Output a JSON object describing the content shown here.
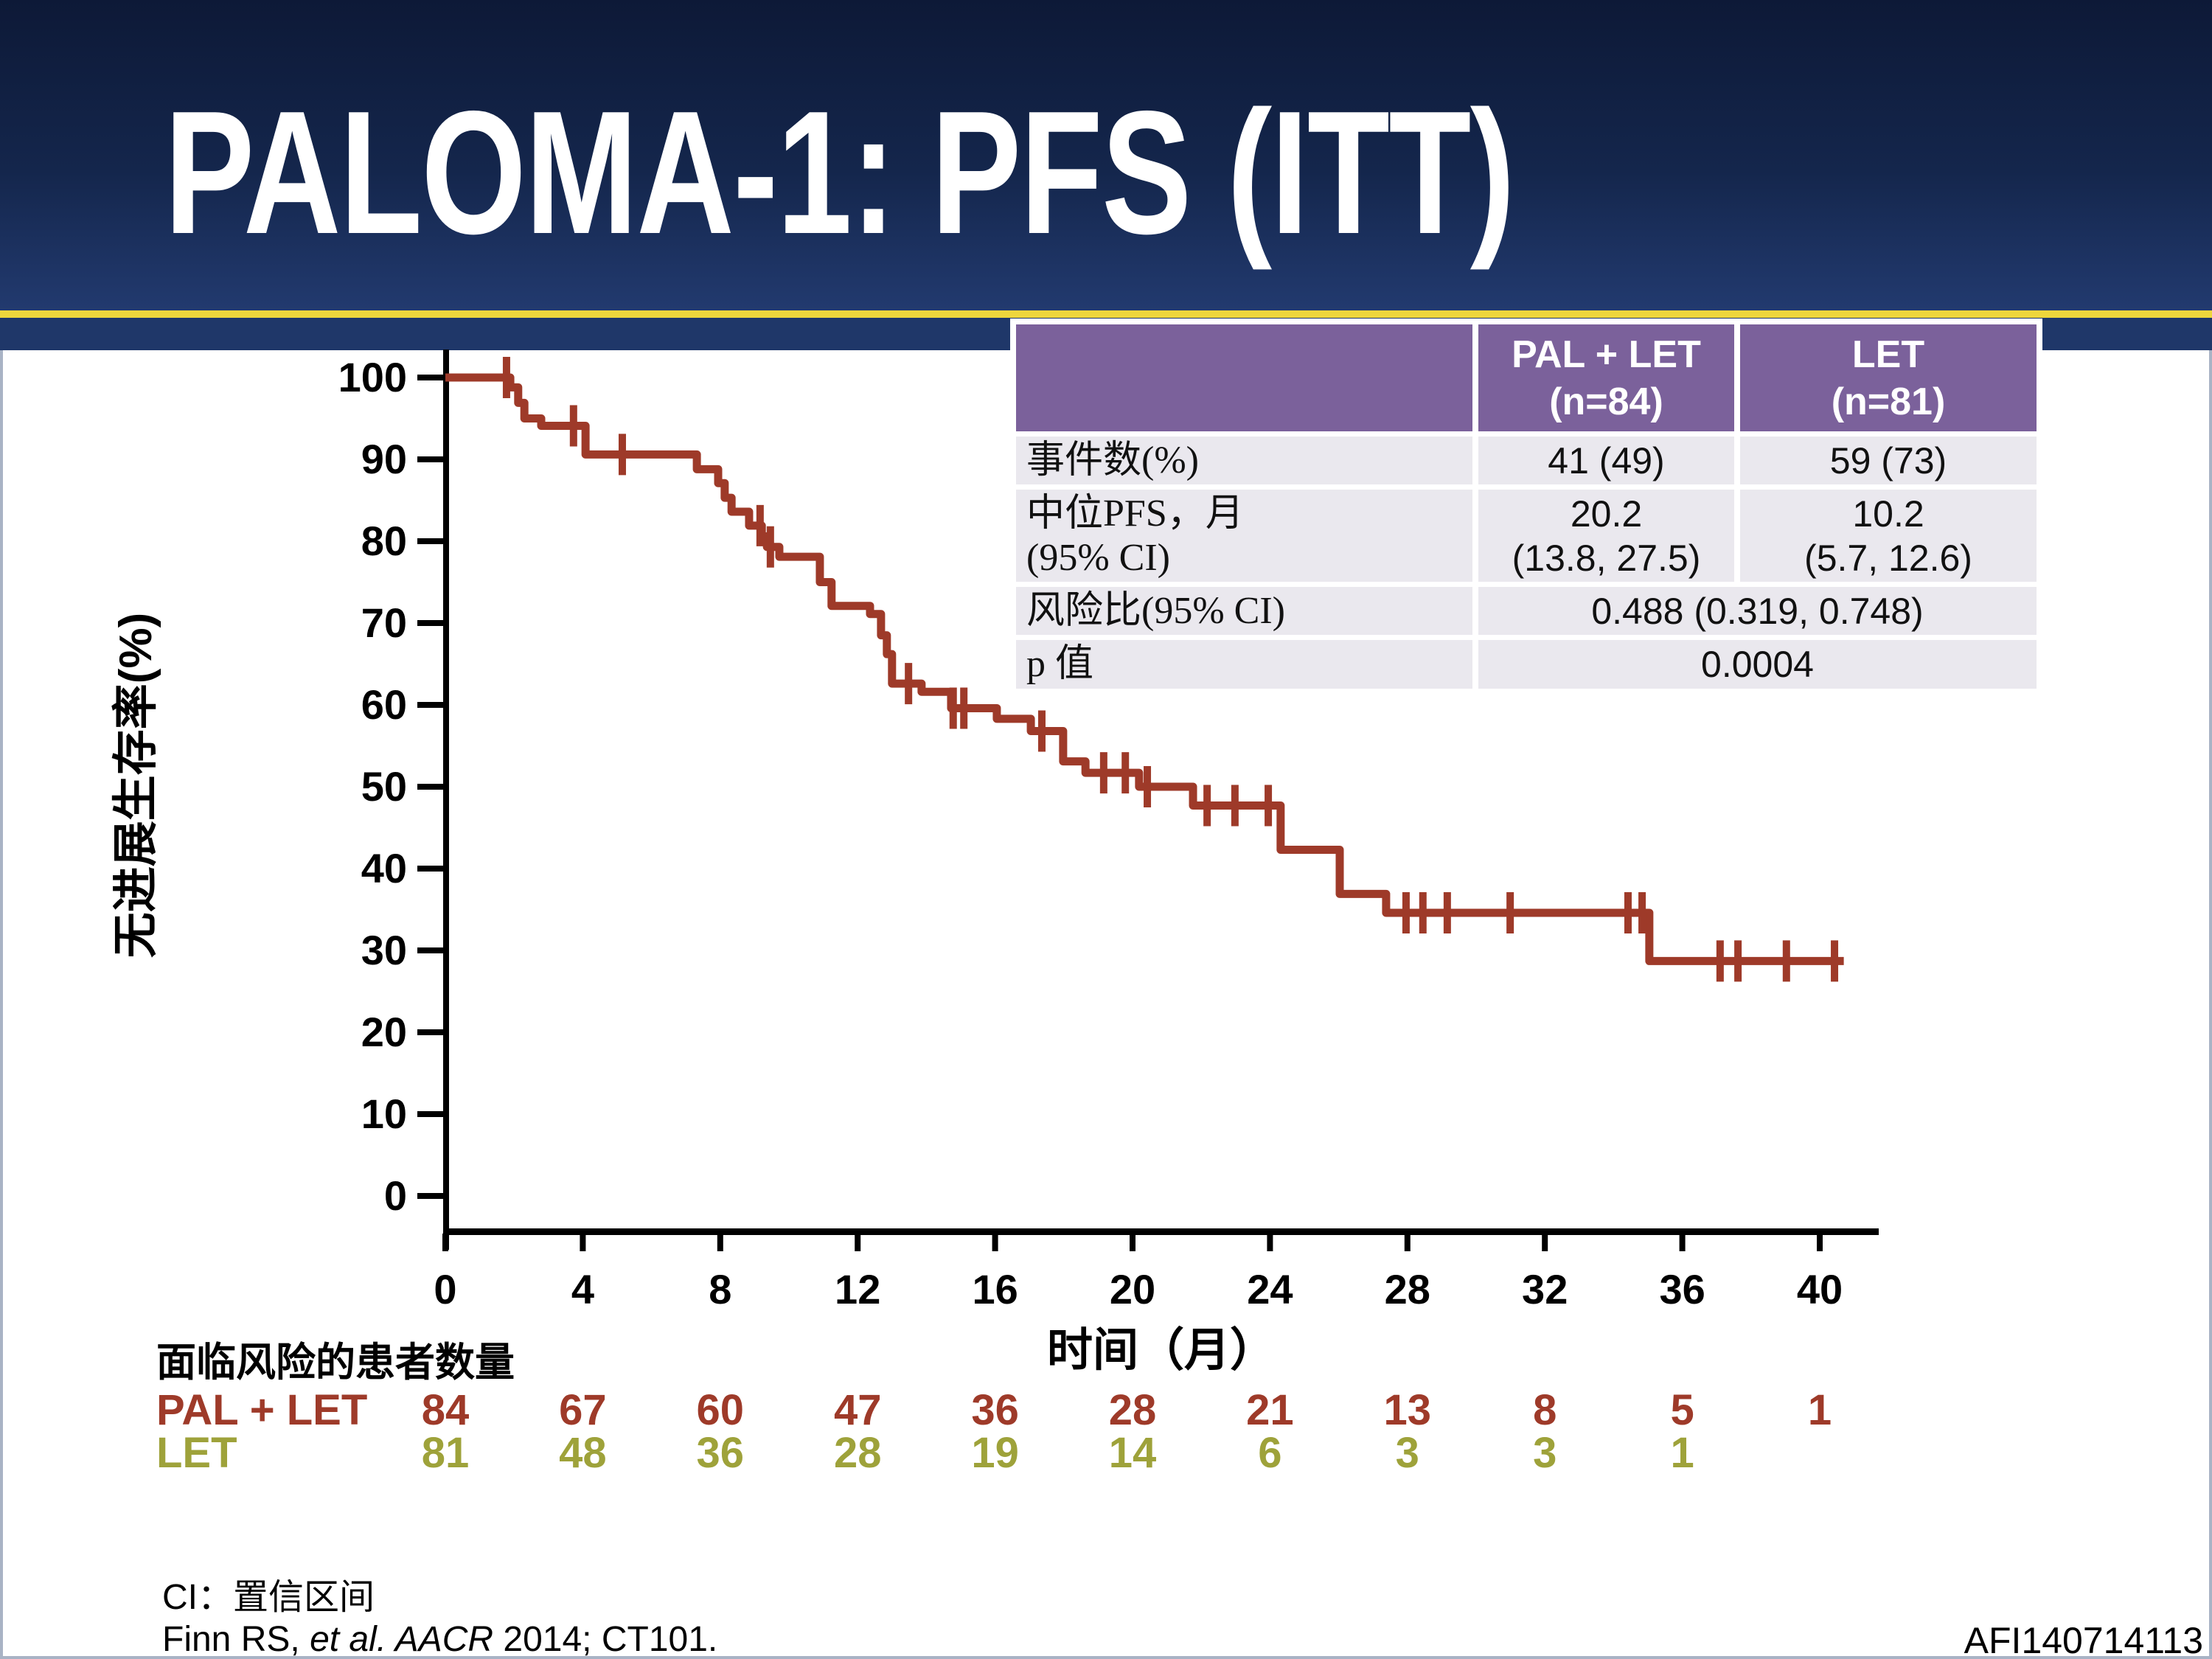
{
  "slide": {
    "title": "PALOMA-1: PFS (ITT)",
    "footnote_line1": "CI：置信区间",
    "footnote_line2": {
      "p1": "Finn RS, ",
      "i1": "et al. AACR",
      "p2": " 2014; CT101."
    },
    "watermark": "AFI140714113",
    "colors": {
      "header_navy_top": "#0d1937",
      "header_navy_bottom": "#223a6f",
      "gold_rule": "#EED63C",
      "table_purple": "#7B619B",
      "table_row_gray": "#EAE8EE",
      "curve_red": "#9E3A29",
      "let_olive": "#9EA23A"
    }
  },
  "summary_table": {
    "columns": [
      {
        "label": "PAL + LET",
        "sub": "(n=84)"
      },
      {
        "label": "LET",
        "sub": "(n=81)"
      }
    ],
    "rows": [
      {
        "label": "事件数(%)",
        "values": [
          "41 (49)",
          "59 (73)"
        ]
      },
      {
        "label_line1": "中位PFS，月",
        "label_line2": "(95% CI)",
        "values": [
          [
            "20.2",
            "(13.8, 27.5)"
          ],
          [
            "10.2",
            "(5.7, 12.6)"
          ]
        ]
      },
      {
        "label": "风险比(95% CI)",
        "merged_value": "0.488 (0.319, 0.748)"
      },
      {
        "label": "p 值",
        "merged_value": "0.0004"
      }
    ]
  },
  "chart_data": {
    "type": "line",
    "subtype": "kaplan-meier-step",
    "xlabel": "时间（月）",
    "ylabel": "无进展生存率(%)",
    "xlim": [
      0,
      42
    ],
    "ylim": [
      0,
      100
    ],
    "xticks": [
      0,
      4,
      8,
      12,
      16,
      20,
      24,
      28,
      32,
      36,
      40
    ],
    "yticks": [
      0,
      10,
      20,
      30,
      40,
      50,
      60,
      70,
      80,
      90,
      100
    ],
    "grid": false,
    "series": [
      {
        "name": "PAL + LET",
        "color": "#9E3A29",
        "end_time": 40.7,
        "steps": [
          [
            0,
            100
          ],
          [
            1.89,
            98.8
          ],
          [
            2.12,
            96.9
          ],
          [
            2.3,
            95
          ],
          [
            2.79,
            94.1
          ],
          [
            4.08,
            90.6
          ],
          [
            7.32,
            88.8
          ],
          [
            7.94,
            87.1
          ],
          [
            8.13,
            85.3
          ],
          [
            8.33,
            83.6
          ],
          [
            8.84,
            81.9
          ],
          [
            9.21,
            80.6
          ],
          [
            9.36,
            79.3
          ],
          [
            9.72,
            78.1
          ],
          [
            10.9,
            75
          ],
          [
            11.24,
            72.1
          ],
          [
            12.36,
            71.1
          ],
          [
            12.68,
            68.5
          ],
          [
            12.85,
            66.2
          ],
          [
            13,
            62.6
          ],
          [
            13.86,
            61.6
          ],
          [
            14.72,
            59.6
          ],
          [
            16.05,
            58.3
          ],
          [
            17.04,
            56.8
          ],
          [
            17.98,
            53.1
          ],
          [
            18.63,
            51.7
          ],
          [
            20.19,
            50
          ],
          [
            21.76,
            47.7
          ],
          [
            24.31,
            42.3
          ],
          [
            26.03,
            36.9
          ],
          [
            27.38,
            34.6
          ],
          [
            35.04,
            28.7
          ]
        ],
        "censors": [
          [
            1.78,
            100
          ],
          [
            3.73,
            94.1
          ],
          [
            5.15,
            90.6
          ],
          [
            9.16,
            81.9
          ],
          [
            9.46,
            79.3
          ],
          [
            13.48,
            62.6
          ],
          [
            14.78,
            59.6
          ],
          [
            15.09,
            59.6
          ],
          [
            17.36,
            56.8
          ],
          [
            19.16,
            51.7
          ],
          [
            19.79,
            51.7
          ],
          [
            20.43,
            50
          ],
          [
            22.17,
            47.7
          ],
          [
            22.98,
            47.7
          ],
          [
            23.95,
            47.7
          ],
          [
            27.96,
            34.6
          ],
          [
            28.45,
            34.6
          ],
          [
            29.16,
            34.6
          ],
          [
            30.99,
            34.6
          ],
          [
            34.42,
            34.6
          ],
          [
            34.83,
            34.6
          ],
          [
            37.1,
            28.7
          ],
          [
            37.62,
            28.7
          ],
          [
            39.03,
            28.7
          ],
          [
            40.43,
            28.7
          ]
        ]
      }
    ],
    "at_risk": {
      "header": "面临风险的患者数量",
      "times": [
        0,
        4,
        8,
        12,
        16,
        20,
        24,
        28,
        32,
        36,
        40
      ],
      "rows": [
        {
          "name": "PAL + LET",
          "color": "#9E3A29",
          "counts": [
            "84",
            "67",
            "60",
            "47",
            "36",
            "28",
            "21",
            "13",
            "8",
            "5",
            "1"
          ]
        },
        {
          "name": "LET",
          "color": "#9EA23A",
          "counts": [
            "81",
            "48",
            "36",
            "28",
            "19",
            "14",
            "6",
            "3",
            "3",
            "1",
            ""
          ]
        }
      ]
    }
  }
}
